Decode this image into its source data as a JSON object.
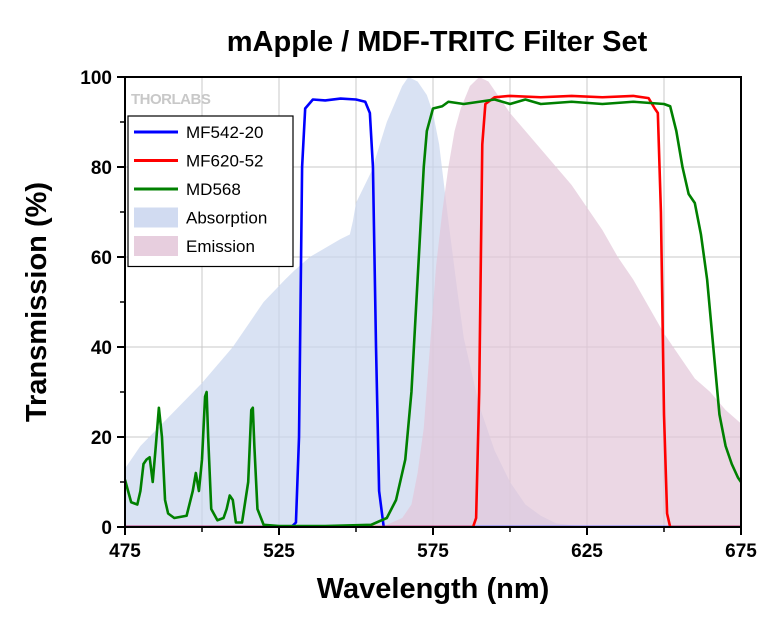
{
  "chart_data": {
    "type": "line",
    "title": "mApple / MDF-TRITC Filter Set",
    "xlabel": "Wavelength (nm)",
    "ylabel": "Transmission (%)",
    "xlim": [
      475,
      675
    ],
    "ylim": [
      0,
      100
    ],
    "x_ticks": [
      475,
      525,
      575,
      625,
      675
    ],
    "y_ticks": [
      0,
      20,
      40,
      60,
      80,
      100
    ],
    "grid": true,
    "legend_position": "top-left",
    "watermark": "THORLABS",
    "series": [
      {
        "name": "MF542-20",
        "kind": "line",
        "color": "#0000ff",
        "points": [
          [
            475,
            0
          ],
          [
            529,
            0
          ],
          [
            530.5,
            1
          ],
          [
            531.5,
            20
          ],
          [
            532.5,
            80
          ],
          [
            533.5,
            93
          ],
          [
            536,
            95
          ],
          [
            540,
            94.8
          ],
          [
            545,
            95.2
          ],
          [
            550,
            95
          ],
          [
            553,
            94.5
          ],
          [
            554.5,
            92
          ],
          [
            555.5,
            80
          ],
          [
            556.5,
            40
          ],
          [
            557.5,
            8
          ],
          [
            559,
            0
          ],
          [
            675,
            0
          ]
        ]
      },
      {
        "name": "MF620-52",
        "kind": "line",
        "color": "#ff0000",
        "points": [
          [
            475,
            0
          ],
          [
            588,
            0
          ],
          [
            589,
            2
          ],
          [
            590,
            30
          ],
          [
            591,
            85
          ],
          [
            592,
            94
          ],
          [
            595,
            95.5
          ],
          [
            600,
            95.8
          ],
          [
            610,
            95.5
          ],
          [
            620,
            95.8
          ],
          [
            630,
            95.5
          ],
          [
            640,
            95.8
          ],
          [
            645,
            95.3
          ],
          [
            647,
            93
          ],
          [
            648,
            92
          ],
          [
            649,
            70
          ],
          [
            650,
            25
          ],
          [
            651,
            3
          ],
          [
            652,
            0
          ],
          [
            675,
            0
          ]
        ]
      },
      {
        "name": "MD568",
        "kind": "line",
        "color": "#008000",
        "points": [
          [
            475,
            10.5
          ],
          [
            476,
            8
          ],
          [
            477,
            5.5
          ],
          [
            479,
            5
          ],
          [
            480,
            8
          ],
          [
            481,
            14
          ],
          [
            482,
            15
          ],
          [
            483,
            15.5
          ],
          [
            484,
            10
          ],
          [
            485,
            18
          ],
          [
            486,
            26.5
          ],
          [
            487,
            20
          ],
          [
            488,
            6
          ],
          [
            489,
            3
          ],
          [
            491,
            2
          ],
          [
            495,
            2.5
          ],
          [
            497,
            8
          ],
          [
            498,
            12
          ],
          [
            499,
            8
          ],
          [
            500,
            15
          ],
          [
            501,
            29
          ],
          [
            501.5,
            30
          ],
          [
            502,
            20
          ],
          [
            503,
            4
          ],
          [
            505,
            1.5
          ],
          [
            507,
            2
          ],
          [
            508,
            4
          ],
          [
            509,
            7
          ],
          [
            510,
            6
          ],
          [
            511,
            1
          ],
          [
            513,
            1
          ],
          [
            515,
            10
          ],
          [
            516,
            26
          ],
          [
            516.5,
            26.5
          ],
          [
            517,
            18
          ],
          [
            518,
            4
          ],
          [
            520,
            0.5
          ],
          [
            525,
            0.2
          ],
          [
            540,
            0.2
          ],
          [
            555,
            0.5
          ],
          [
            560,
            2
          ],
          [
            563,
            6
          ],
          [
            566,
            15
          ],
          [
            568,
            30
          ],
          [
            570,
            55
          ],
          [
            572,
            80
          ],
          [
            573,
            88
          ],
          [
            575,
            93
          ],
          [
            578,
            93.5
          ],
          [
            580,
            94.5
          ],
          [
            585,
            94
          ],
          [
            590,
            94.5
          ],
          [
            595,
            95
          ],
          [
            600,
            94
          ],
          [
            605,
            95
          ],
          [
            610,
            94
          ],
          [
            620,
            94.5
          ],
          [
            630,
            94
          ],
          [
            640,
            94.5
          ],
          [
            650,
            94
          ],
          [
            652,
            93.5
          ],
          [
            654,
            88
          ],
          [
            656,
            80
          ],
          [
            658,
            74
          ],
          [
            660,
            72
          ],
          [
            662,
            65
          ],
          [
            664,
            55
          ],
          [
            666,
            40
          ],
          [
            668,
            25
          ],
          [
            670,
            18
          ],
          [
            672,
            14
          ],
          [
            674,
            11
          ],
          [
            675,
            10
          ]
        ]
      },
      {
        "name": "Absorption",
        "kind": "area",
        "color": "#c9d5ee",
        "points": [
          [
            475,
            13
          ],
          [
            480,
            18
          ],
          [
            490,
            25
          ],
          [
            500,
            32
          ],
          [
            510,
            40
          ],
          [
            520,
            50
          ],
          [
            527,
            55
          ],
          [
            530,
            57
          ],
          [
            535,
            60
          ],
          [
            540,
            62
          ],
          [
            545,
            64
          ],
          [
            548,
            65
          ],
          [
            549,
            68
          ],
          [
            550,
            72
          ],
          [
            555,
            79
          ],
          [
            560,
            90
          ],
          [
            565,
            98
          ],
          [
            567,
            100
          ],
          [
            570,
            99
          ],
          [
            573,
            96
          ],
          [
            575,
            92
          ],
          [
            577,
            85
          ],
          [
            580,
            68
          ],
          [
            583,
            52
          ],
          [
            585,
            42
          ],
          [
            590,
            27
          ],
          [
            595,
            17
          ],
          [
            600,
            10
          ],
          [
            605,
            5
          ],
          [
            610,
            2.5
          ],
          [
            615,
            0.8
          ],
          [
            625,
            0
          ],
          [
            675,
            0
          ]
        ]
      },
      {
        "name": "Emission",
        "kind": "area",
        "color": "#e3c6d8",
        "points": [
          [
            475,
            0
          ],
          [
            555,
            0
          ],
          [
            560,
            0.5
          ],
          [
            565,
            2
          ],
          [
            568,
            5
          ],
          [
            570,
            12
          ],
          [
            572,
            22
          ],
          [
            574,
            40
          ],
          [
            576,
            58
          ],
          [
            578,
            70
          ],
          [
            580,
            80
          ],
          [
            582,
            88
          ],
          [
            584,
            93
          ],
          [
            587,
            98
          ],
          [
            590,
            100
          ],
          [
            593,
            99
          ],
          [
            597,
            95
          ],
          [
            600,
            92
          ],
          [
            605,
            88
          ],
          [
            610,
            84
          ],
          [
            615,
            80
          ],
          [
            620,
            76
          ],
          [
            625,
            71
          ],
          [
            630,
            66
          ],
          [
            635,
            60
          ],
          [
            640,
            55
          ],
          [
            645,
            49
          ],
          [
            650,
            43
          ],
          [
            655,
            38
          ],
          [
            660,
            33
          ],
          [
            665,
            30
          ],
          [
            670,
            26
          ],
          [
            675,
            23
          ]
        ]
      }
    ]
  }
}
